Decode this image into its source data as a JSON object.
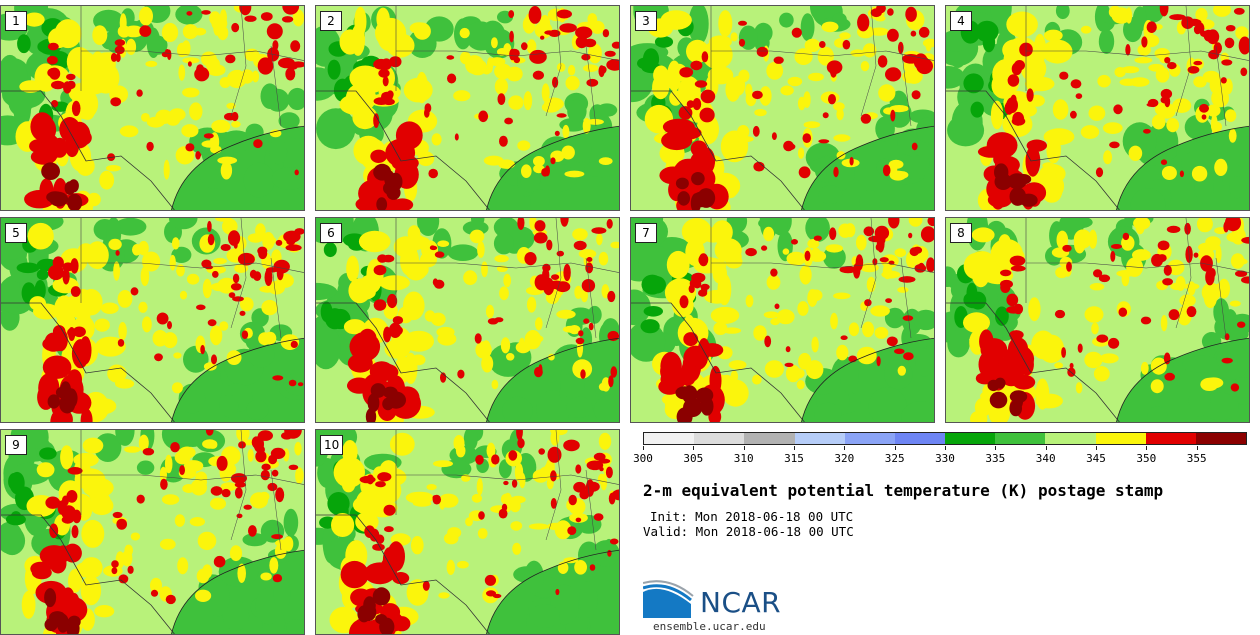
{
  "panels": [
    {
      "label": "1"
    },
    {
      "label": "2"
    },
    {
      "label": "3"
    },
    {
      "label": "4"
    },
    {
      "label": "5"
    },
    {
      "label": "6"
    },
    {
      "label": "7"
    },
    {
      "label": "8"
    },
    {
      "label": "9"
    },
    {
      "label": "10"
    }
  ],
  "colorbar": {
    "colors": [
      "#f2f2f2",
      "#dcdcdc",
      "#b2b2b2",
      "#b6cdf8",
      "#8ba4f6",
      "#6e85f4",
      "#06a50a",
      "#3fc13c",
      "#b8f27a",
      "#fbf50c",
      "#e10000",
      "#8b0000"
    ],
    "tick_labels": [
      "300",
      "305",
      "310",
      "315",
      "320",
      "325",
      "330",
      "335",
      "340",
      "345",
      "350",
      "355"
    ]
  },
  "title": "2-m equivalent potential temperature (K) postage stamp",
  "init": "Init: Mon 2018-06-18 00 UTC",
  "valid": "Valid: Mon 2018-06-18 00 UTC",
  "logo": {
    "text": "NCAR",
    "site": "ensemble.ucar.edu"
  },
  "map_colors": {
    "base": "#b8f27a",
    "green": "#3fc13c",
    "dark_green": "#06a50a",
    "yellow": "#fbf50c",
    "red": "#e10000",
    "dark_red": "#8b0000"
  }
}
